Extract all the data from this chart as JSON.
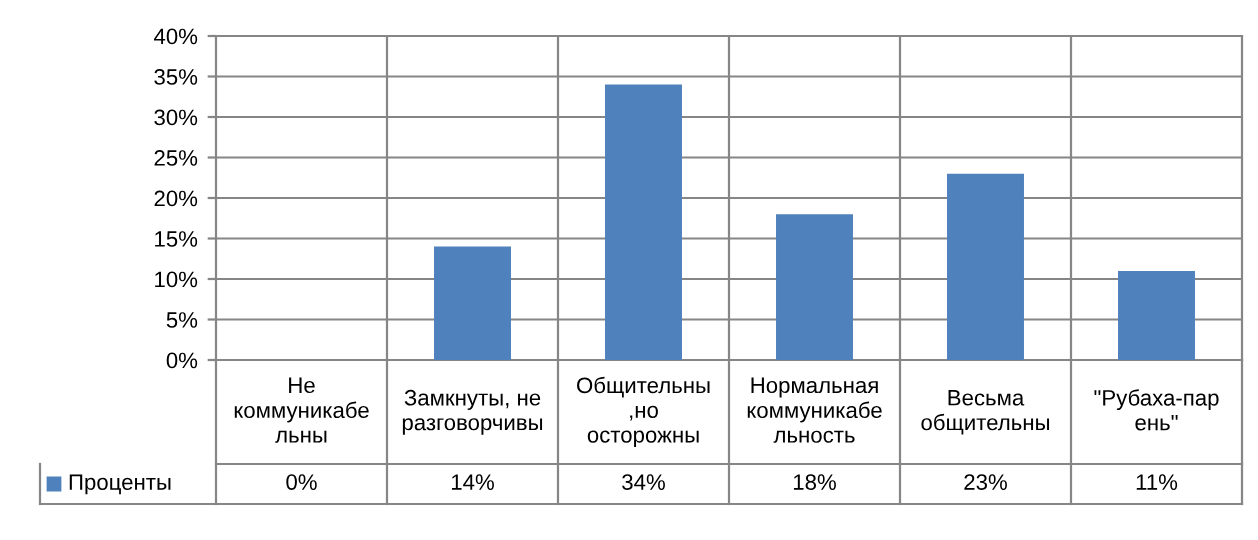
{
  "chart_data": {
    "type": "bar",
    "categories": [
      "Не коммуникабельны",
      "Замкнуты, не разговорчивы",
      "Общительны ,но осторожны",
      "Нормальная коммуникабельность",
      "Весьма общительны",
      "\"Рубаха-парень\""
    ],
    "series": [
      {
        "name": "Проценты",
        "color": "#4f81bd",
        "values": [
          0,
          14,
          34,
          18,
          23,
          11
        ],
        "value_labels": [
          "0%",
          "14%",
          "34%",
          "18%",
          "23%",
          "11%"
        ]
      }
    ],
    "ylim": [
      0,
      40
    ],
    "yticks": [
      {
        "value": 0,
        "label": "0%"
      },
      {
        "value": 5,
        "label": "5%"
      },
      {
        "value": 10,
        "label": "10%"
      },
      {
        "value": 15,
        "label": "15%"
      },
      {
        "value": 20,
        "label": "20%"
      },
      {
        "value": 25,
        "label": "25%"
      },
      {
        "value": 30,
        "label": "30%"
      },
      {
        "value": 35,
        "label": "35%"
      },
      {
        "value": 40,
        "label": "40%"
      }
    ],
    "grid": true,
    "legend": "bottom"
  }
}
